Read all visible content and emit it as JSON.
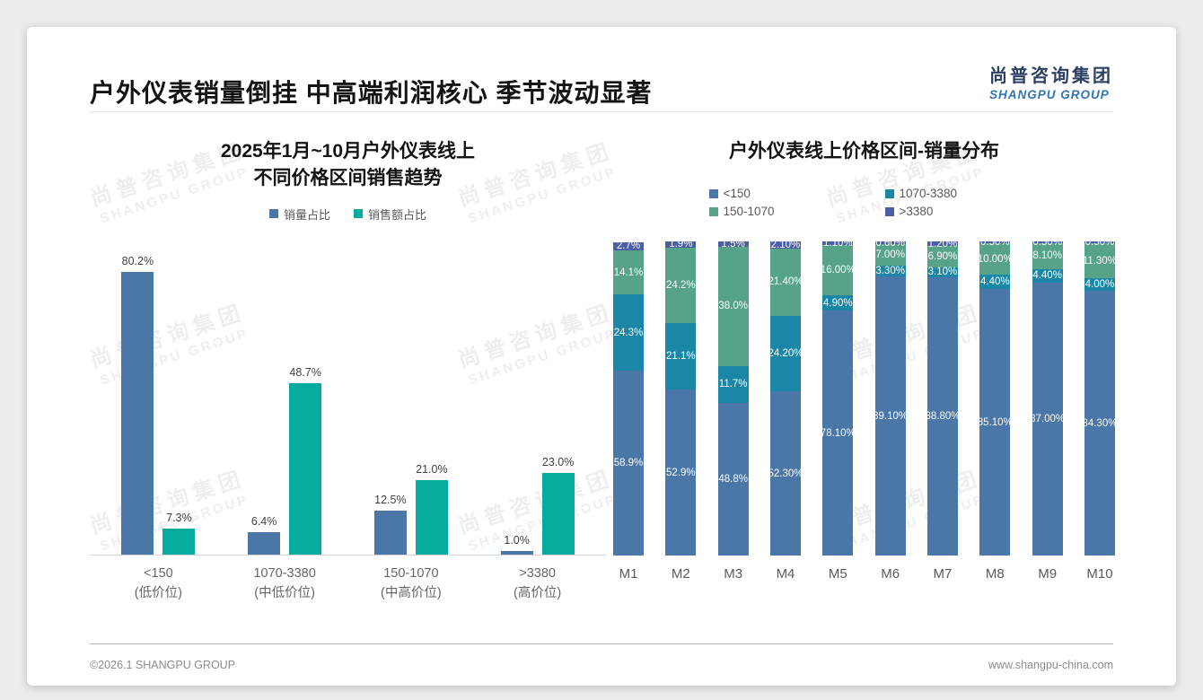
{
  "header": {
    "title": "户外仪表销量倒挂 中高端利润核心 季节波动显著",
    "logo_cn": "尚普咨询集团",
    "logo_en": "SHANGPU GROUP"
  },
  "watermark": {
    "line1": "尚普咨询集团",
    "line2": "SHANGPU GROUP"
  },
  "footer": {
    "copyright": "©2026.1 SHANGPU GROUP",
    "website": "www.shangpu-china.com"
  },
  "chart_data": [
    {
      "type": "bar",
      "stacked": false,
      "title_lines": [
        "2025年1月~10月户外仪表线上",
        "不同价格区间销售趋势"
      ],
      "categories": [
        {
          "line1": "<150",
          "line2": "(低价位)"
        },
        {
          "line1": "1070-3380",
          "line2": "(中低价位)"
        },
        {
          "line1": "150-1070",
          "line2": "(中高价位)"
        },
        {
          "line1": ">3380",
          "line2": "(高价位)"
        }
      ],
      "series": [
        {
          "name": "销量占比",
          "color": "#4a76a8",
          "values": [
            80.2,
            6.4,
            12.5,
            1.0
          ],
          "labels": [
            "80.2%",
            "6.4%",
            "12.5%",
            "1.0%"
          ]
        },
        {
          "name": "销售额占比",
          "color": "#06ab9e",
          "values": [
            7.3,
            48.7,
            21.0,
            23.0
          ],
          "labels": [
            "7.3%",
            "48.7%",
            "21.0%",
            "23.0%"
          ]
        }
      ],
      "ylim": [
        0,
        84
      ],
      "grid": false,
      "legend_position": "top"
    },
    {
      "type": "bar",
      "stacked": true,
      "title": "户外仪表线上价格区间-销量分布",
      "categories": [
        "M1",
        "M2",
        "M3",
        "M4",
        "M5",
        "M6",
        "M7",
        "M8",
        "M9",
        "M10"
      ],
      "series": [
        {
          "name": "<150",
          "color": "#4a76a8",
          "values": [
            58.9,
            52.9,
            48.8,
            52.3,
            78.1,
            89.1,
            88.8,
            85.1,
            87.0,
            84.3
          ],
          "labels": [
            "58.9%",
            "52.9%",
            "48.8%",
            "52.30%",
            "78.10%",
            "89.10%",
            "88.80%",
            "85.10%",
            "87.00%",
            "84.30%"
          ]
        },
        {
          "name": "1070-3380",
          "color": "#1b87a6",
          "values": [
            24.3,
            21.1,
            11.7,
            24.2,
            4.9,
            3.3,
            3.1,
            4.4,
            4.4,
            4.0
          ],
          "labels": [
            "24.3%",
            "21.1%",
            "11.7%",
            "24.20%",
            "4.90%",
            "3.30%",
            "3.10%",
            "4.40%",
            "4.40%",
            "4.00%"
          ]
        },
        {
          "name": "150-1070",
          "color": "#57a387",
          "values": [
            14.1,
            24.2,
            38.0,
            21.4,
            16.0,
            7.0,
            6.9,
            10.0,
            8.1,
            11.3
          ],
          "labels": [
            "14.1%",
            "24.2%",
            "38.0%",
            "21.40%",
            "16.00%",
            "7.00%",
            "6.90%",
            "10.00%",
            "8.10%",
            "11.30%"
          ]
        },
        {
          "name": ">3380",
          "color": "#4c5ea6",
          "values": [
            2.7,
            1.9,
            1.5,
            2.1,
            1.1,
            0.6,
            1.2,
            0.5,
            0.5,
            0.5
          ],
          "labels": [
            "2.7%",
            "1.9%",
            "1.5%",
            "2.10%",
            "1.10%",
            "0.60%",
            "1.20%",
            "0.50%",
            "0.50%",
            "0.50%"
          ]
        }
      ],
      "ylim": [
        0,
        100
      ],
      "grid": false,
      "legend_position": "top"
    }
  ]
}
